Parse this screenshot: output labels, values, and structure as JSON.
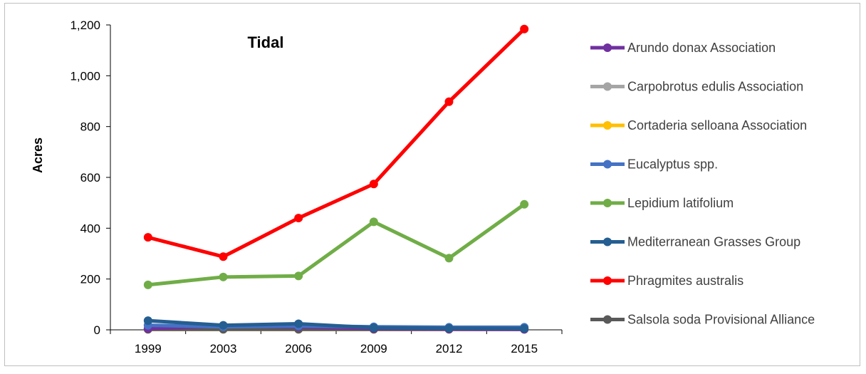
{
  "chart_data": {
    "type": "line",
    "title": "Tidal",
    "xlabel": "",
    "ylabel": "Acres",
    "categories": [
      "1999",
      "2003",
      "2006",
      "2009",
      "2012",
      "2015"
    ],
    "ylim": [
      0,
      1200
    ],
    "yticks": [
      "0",
      "200",
      "400",
      "600",
      "800",
      "1,000",
      "1,200"
    ],
    "ytick_values": [
      0,
      200,
      400,
      600,
      800,
      1000,
      1200
    ],
    "grid": false,
    "legend_position": "right",
    "series": [
      {
        "name": "Arundo donax Association",
        "color": "#7030a0",
        "values": [
          5,
          15,
          12,
          5,
          3,
          2
        ]
      },
      {
        "name": "Carpobrotus edulis Association",
        "color": "#a5a5a5",
        "values": [
          3,
          3,
          3,
          3,
          3,
          3
        ]
      },
      {
        "name": "Cortaderia selloana Association",
        "color": "#ffc000",
        "values": [
          2,
          2,
          2,
          2,
          2,
          2
        ]
      },
      {
        "name": "Eucalyptus spp.",
        "color": "#4472c4",
        "values": [
          18,
          12,
          15,
          12,
          10,
          10
        ]
      },
      {
        "name": "Lepidium latifolium",
        "color": "#70ad47",
        "values": [
          177,
          208,
          212,
          425,
          282,
          494
        ]
      },
      {
        "name": "Mediterranean Grasses Group",
        "color": "#255e91",
        "values": [
          36,
          18,
          24,
          8,
          6,
          5
        ]
      },
      {
        "name": "Phragmites australis",
        "color": "#ff0000",
        "values": [
          364,
          288,
          440,
          574,
          898,
          1184
        ]
      },
      {
        "name": "Salsola soda Provisional Alliance",
        "color": "#595959",
        "values": [
          2,
          2,
          2,
          2,
          2,
          2
        ]
      }
    ]
  }
}
